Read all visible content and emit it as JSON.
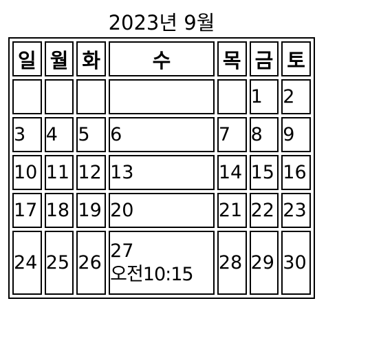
{
  "calendar": {
    "title": "2023년 9월",
    "weekdays": [
      "일",
      "월",
      "화",
      "수",
      "목",
      "금",
      "토"
    ],
    "weeks": [
      [
        "",
        "",
        "",
        "",
        "",
        "1",
        "2"
      ],
      [
        "3",
        "4",
        "5",
        "6",
        "7",
        "8",
        "9"
      ],
      [
        "10",
        "11",
        "12",
        "13",
        "14",
        "15",
        "16"
      ],
      [
        "17",
        "18",
        "19",
        "20",
        "21",
        "22",
        "23"
      ],
      [
        "24",
        "25",
        "26",
        "27",
        "28",
        "29",
        "30"
      ]
    ],
    "event": {
      "day": "27",
      "time": "오전10:15"
    }
  }
}
